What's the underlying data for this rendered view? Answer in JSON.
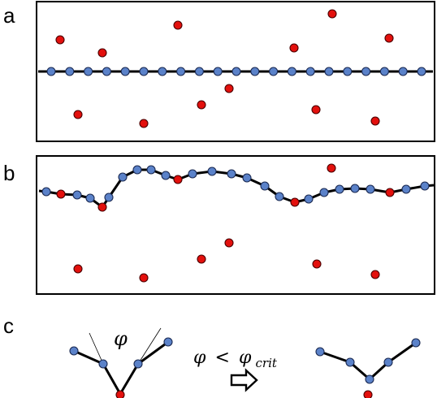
{
  "panels": {
    "a": {
      "label": "a"
    },
    "b": {
      "label": "b"
    },
    "c": {
      "label": "c"
    }
  },
  "panel_c": {
    "angle_symbol": "φ",
    "condition": {
      "lhs": "φ",
      "operator": "<",
      "rhs": "φ",
      "rhs_subscript": "crit"
    },
    "arrow_symbol": "⇨"
  },
  "colors": {
    "chain_bead": "#5b82c9",
    "impurity": "#e3100d",
    "line": "#000000"
  }
}
